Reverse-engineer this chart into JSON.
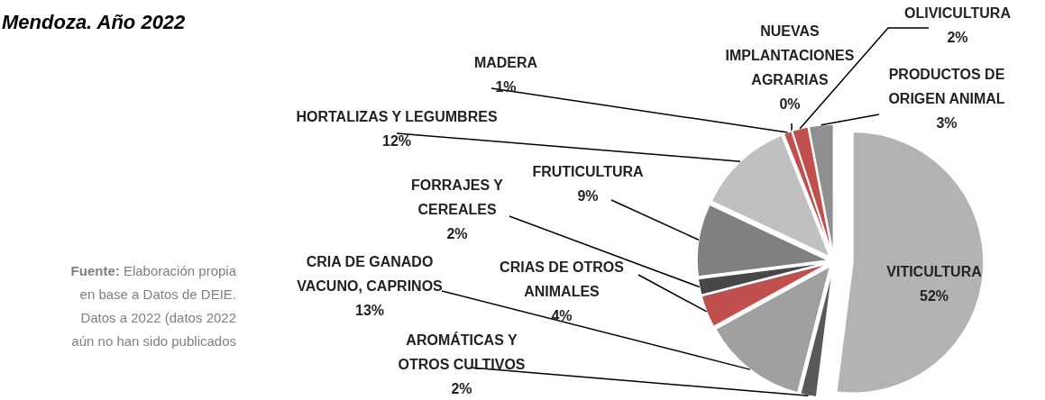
{
  "chart_data": {
    "type": "pie",
    "title": "Mendoza. Año 2022",
    "categories": [
      "VITICULTURA",
      "AROMÁTICAS Y OTROS CULTIVOS",
      "CRIA DE GANADO VACUNO, CAPRINOS",
      "CRIAS DE OTROS ANIMALES",
      "FORRAJES Y CEREALES",
      "FRUTICULTURA",
      "HORTALIZAS Y LEGUMBRES",
      "MADERA",
      "NUEVAS IMPLANTACIONES AGRARIAS",
      "OLIVICULTURA",
      "PRODUCTOS DE ORIGEN ANIMAL"
    ],
    "values": [
      52,
      2,
      13,
      4,
      2,
      9,
      12,
      1,
      0,
      2,
      3
    ],
    "colors": [
      "#b3b3b3",
      "#595959",
      "#a0a0a0",
      "#c0504d",
      "#474747",
      "#808080",
      "#c0c0c0",
      "#c0504d",
      null,
      "#c0504d",
      "#8f8f8f"
    ],
    "value_labels": [
      "52%",
      "2%",
      "13%",
      "4%",
      "2%",
      "9%",
      "12%",
      "1%",
      "0%",
      "2%",
      "3%"
    ],
    "annotations": [
      "Fuente: Elaboración propia en base a Datos de DEIE. Datos a 2022 (datos 2022 aún no han sido publicados"
    ]
  }
}
